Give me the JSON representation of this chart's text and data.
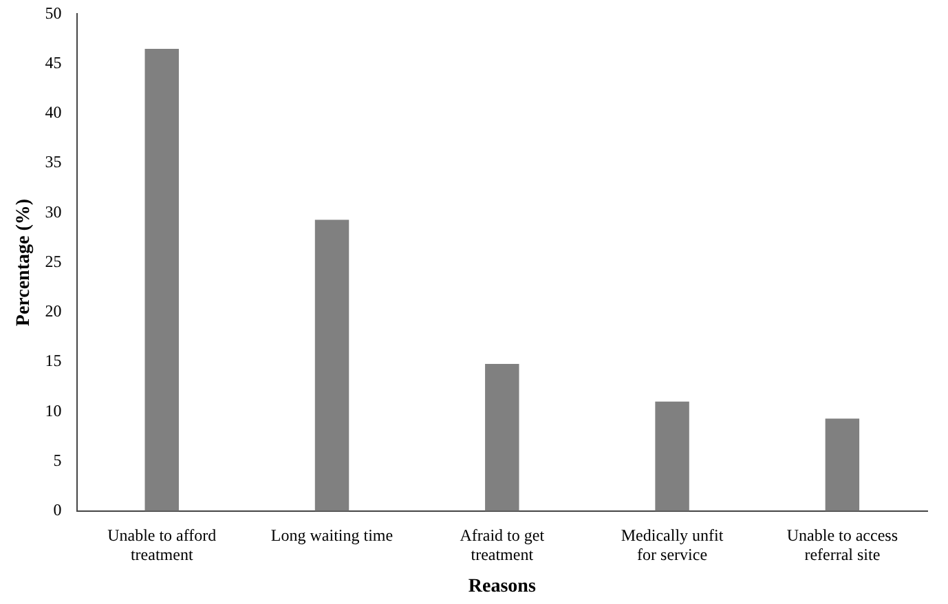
{
  "chart_data": {
    "type": "bar",
    "xlabel": "Reasons",
    "ylabel": "Percentage (%)",
    "categories": [
      "Unable to afford treatment",
      "Long waiting time",
      "Afraid to get treatment",
      "Medically unfit for service",
      "Unable to access referral site"
    ],
    "values": [
      46.5,
      29.3,
      14.8,
      11,
      9.3
    ],
    "color": "#808080",
    "ylim": [
      0,
      50
    ],
    "yticks": [
      0,
      5,
      10,
      15,
      20,
      25,
      30,
      35,
      40,
      45,
      50
    ],
    "grid": false,
    "legend": false
  }
}
